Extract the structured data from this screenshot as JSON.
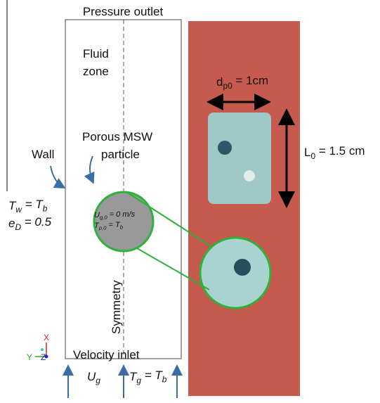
{
  "diagram": {
    "pressure_outlet": "Pressure outlet",
    "fluid_zone": [
      "Fluid",
      "zone"
    ],
    "porous_particle": [
      "Porous MSW",
      "particle"
    ],
    "wall": "Wall",
    "wall_temp": [
      "T",
      {
        "sub": "w"
      },
      " = T",
      {
        "sub": "b"
      }
    ],
    "emissivity": [
      "e",
      {
        "sub": "D"
      },
      " = 0.5"
    ],
    "initial_velocity": [
      "U",
      {
        "sub": "g,0"
      },
      " = 0 m/s"
    ],
    "initial_temp": [
      "T",
      {
        "sub": "p,0"
      },
      " = T",
      {
        "sub": "b"
      }
    ],
    "symmetry": "Symmetry",
    "velocity_inlet": "Velocity inlet",
    "inlet_velocity": [
      "U",
      {
        "sub": "g"
      }
    ],
    "inlet_temp": [
      "T",
      {
        "sub": "g"
      },
      " = T",
      {
        "sub": "b"
      }
    ],
    "diameter": [
      "d",
      {
        "sub": "p0"
      },
      " = 1cm"
    ],
    "length": [
      "L",
      {
        "sub": "0"
      },
      " = 1.5 cm"
    ],
    "axes": {
      "x": "X",
      "y": "Y",
      "z": "Z"
    }
  }
}
